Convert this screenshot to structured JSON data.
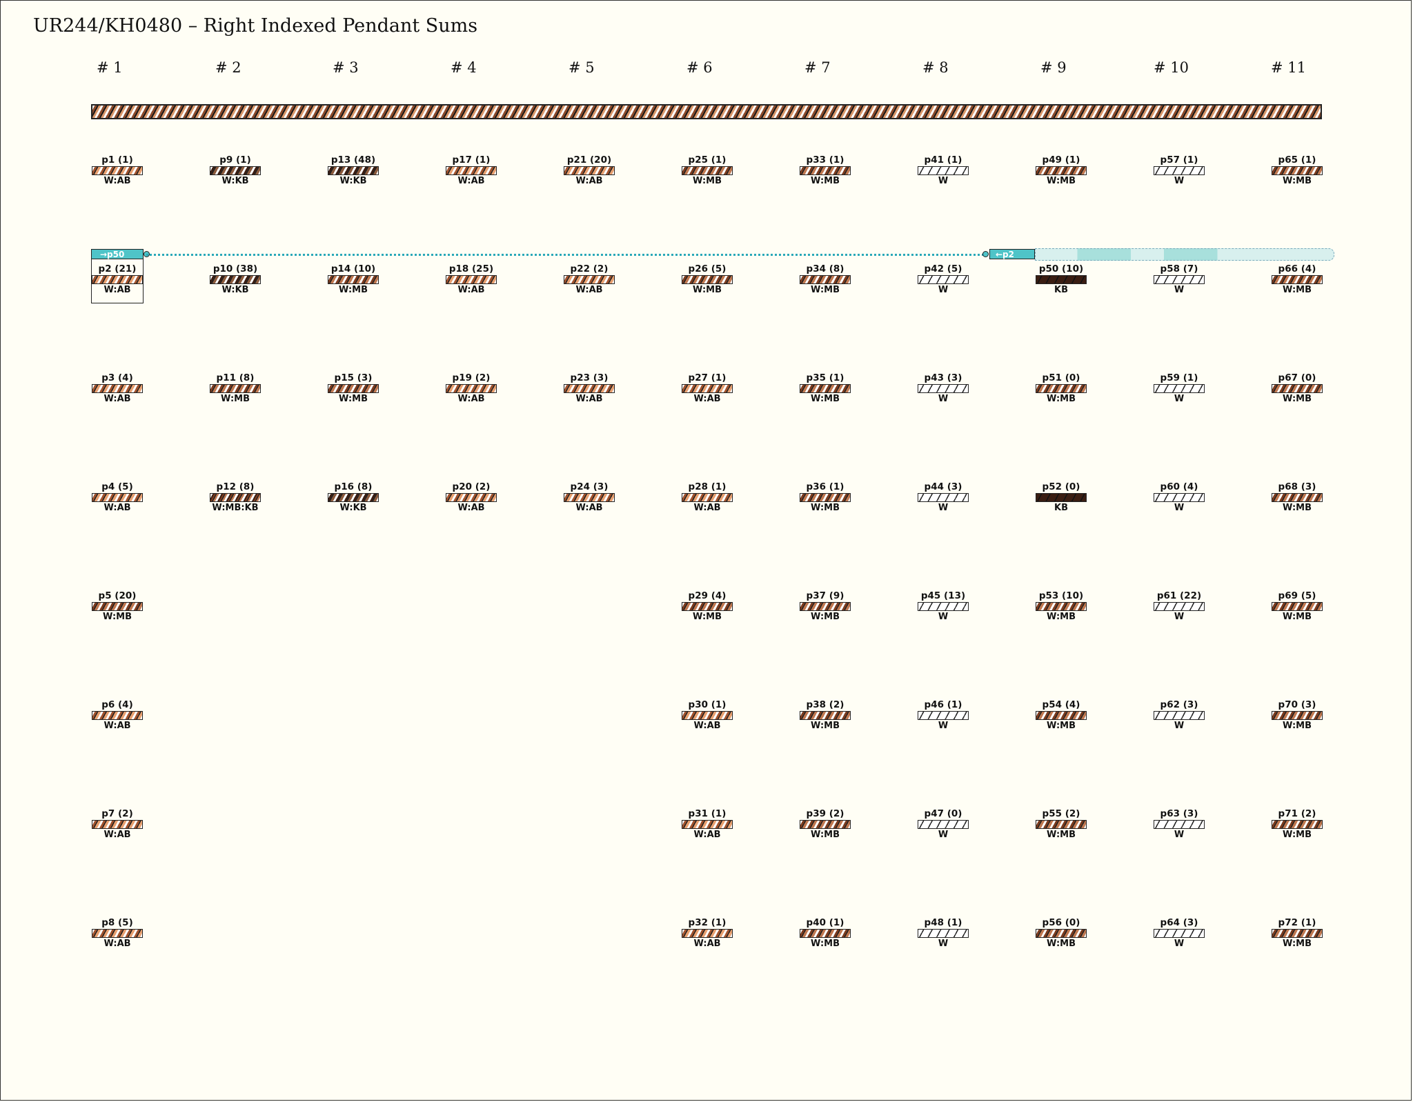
{
  "title": "UR244/KH0480 – Right Indexed Pendant Sums",
  "groups": [
    "# 1",
    "# 2",
    "# 3",
    "# 4",
    "# 5",
    "# 6",
    "# 7",
    "# 8",
    "# 9",
    "# 10",
    "# 11"
  ],
  "link": {
    "source": "p2",
    "target": "p50",
    "source_tag": "→p50",
    "target_tag": "←p2",
    "color": "#4fc4c8"
  },
  "colors": {
    "W": "#ffffff",
    "AB": "#e8a070",
    "MB": "#7b3b1e",
    "KB": "#3a1d12",
    "link": "#4fc4c8"
  },
  "columns": [
    [
      {
        "label": "p1 (1)",
        "color": "W:AB"
      },
      {
        "label": "p2 (21)",
        "color": "W:AB"
      },
      {
        "label": "p3 (4)",
        "color": "W:AB"
      },
      {
        "label": "p4 (5)",
        "color": "W:AB"
      },
      {
        "label": "p5 (20)",
        "color": "W:MB"
      },
      {
        "label": "p6 (4)",
        "color": "W:AB"
      },
      {
        "label": "p7 (2)",
        "color": "W:AB"
      },
      {
        "label": "p8 (5)",
        "color": "W:AB"
      }
    ],
    [
      {
        "label": "p9 (1)",
        "color": "W:KB"
      },
      {
        "label": "p10 (38)",
        "color": "W:KB"
      },
      {
        "label": "p11 (8)",
        "color": "W:MB"
      },
      {
        "label": "p12 (8)",
        "color": "W:MB:KB"
      }
    ],
    [
      {
        "label": "p13 (48)",
        "color": "W:KB"
      },
      {
        "label": "p14 (10)",
        "color": "W:MB"
      },
      {
        "label": "p15 (3)",
        "color": "W:MB"
      },
      {
        "label": "p16 (8)",
        "color": "W:KB"
      }
    ],
    [
      {
        "label": "p17 (1)",
        "color": "W:AB"
      },
      {
        "label": "p18 (25)",
        "color": "W:AB"
      },
      {
        "label": "p19 (2)",
        "color": "W:AB"
      },
      {
        "label": "p20 (2)",
        "color": "W:AB"
      }
    ],
    [
      {
        "label": "p21 (20)",
        "color": "W:AB"
      },
      {
        "label": "p22 (2)",
        "color": "W:AB"
      },
      {
        "label": "p23 (3)",
        "color": "W:AB"
      },
      {
        "label": "p24 (3)",
        "color": "W:AB"
      }
    ],
    [
      {
        "label": "p25 (1)",
        "color": "W:MB"
      },
      {
        "label": "p26 (5)",
        "color": "W:MB"
      },
      {
        "label": "p27 (1)",
        "color": "W:AB"
      },
      {
        "label": "p28 (1)",
        "color": "W:AB"
      },
      {
        "label": "p29 (4)",
        "color": "W:MB"
      },
      {
        "label": "p30 (1)",
        "color": "W:AB"
      },
      {
        "label": "p31 (1)",
        "color": "W:AB"
      },
      {
        "label": "p32 (1)",
        "color": "W:AB"
      }
    ],
    [
      {
        "label": "p33 (1)",
        "color": "W:MB"
      },
      {
        "label": "p34 (8)",
        "color": "W:MB"
      },
      {
        "label": "p35 (1)",
        "color": "W:MB"
      },
      {
        "label": "p36 (1)",
        "color": "W:MB"
      },
      {
        "label": "p37 (9)",
        "color": "W:MB"
      },
      {
        "label": "p38 (2)",
        "color": "W:MB"
      },
      {
        "label": "p39 (2)",
        "color": "W:MB"
      },
      {
        "label": "p40 (1)",
        "color": "W:MB"
      }
    ],
    [
      {
        "label": "p41 (1)",
        "color": "W"
      },
      {
        "label": "p42 (5)",
        "color": "W"
      },
      {
        "label": "p43 (3)",
        "color": "W"
      },
      {
        "label": "p44 (3)",
        "color": "W"
      },
      {
        "label": "p45 (13)",
        "color": "W"
      },
      {
        "label": "p46 (1)",
        "color": "W"
      },
      {
        "label": "p47 (0)",
        "color": "W"
      },
      {
        "label": "p48 (1)",
        "color": "W"
      }
    ],
    [
      {
        "label": "p49 (1)",
        "color": "W:MB"
      },
      {
        "label": "p50 (10)",
        "color": "KB"
      },
      {
        "label": "p51 (0)",
        "color": "W:MB"
      },
      {
        "label": "p52 (0)",
        "color": "KB"
      },
      {
        "label": "p53 (10)",
        "color": "W:MB"
      },
      {
        "label": "p54 (4)",
        "color": "W:MB"
      },
      {
        "label": "p55 (2)",
        "color": "W:MB"
      },
      {
        "label": "p56 (0)",
        "color": "W:MB"
      }
    ],
    [
      {
        "label": "p57 (1)",
        "color": "W"
      },
      {
        "label": "p58 (7)",
        "color": "W"
      },
      {
        "label": "p59 (1)",
        "color": "W"
      },
      {
        "label": "p60 (4)",
        "color": "W"
      },
      {
        "label": "p61 (22)",
        "color": "W"
      },
      {
        "label": "p62 (3)",
        "color": "W"
      },
      {
        "label": "p63 (3)",
        "color": "W"
      },
      {
        "label": "p64 (3)",
        "color": "W"
      }
    ],
    [
      {
        "label": "p65 (1)",
        "color": "W:MB"
      },
      {
        "label": "p66 (4)",
        "color": "W:MB"
      },
      {
        "label": "p67 (0)",
        "color": "W:MB"
      },
      {
        "label": "p68 (3)",
        "color": "W:MB"
      },
      {
        "label": "p69 (5)",
        "color": "W:MB"
      },
      {
        "label": "p70 (3)",
        "color": "W:MB"
      },
      {
        "label": "p71 (2)",
        "color": "W:MB"
      },
      {
        "label": "p72 (1)",
        "color": "W:MB"
      }
    ]
  ]
}
